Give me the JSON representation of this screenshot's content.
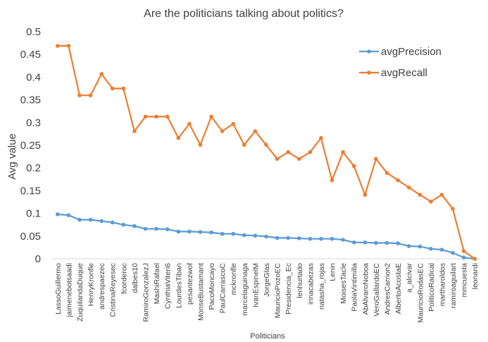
{
  "chart_data": {
    "type": "line",
    "title": "Are the politicians talking about politics?",
    "xlabel": "Politicians",
    "ylabel": "Avg value",
    "ylim": [
      0,
      0.5
    ],
    "yticks": [
      "0",
      "0.05",
      "0.1",
      "0.15",
      "0.2",
      "0.25",
      "0.3",
      "0.35",
      "0.4",
      "0.45",
      "0.5"
    ],
    "grid": false,
    "legend_position": "top-right",
    "categories": [
      "LassoGuillermo",
      "jaimenebotsaadi",
      "ZuquilandaDuque",
      "HenryKronfle",
      "andrespaezec",
      "CristinaReyesec",
      "fcorderoc",
      "dalbes10",
      "RamiroGonzalezJ",
      "MashiRafael",
      "CynthiaViteri6",
      "LourdesTiban",
      "pesantezwof",
      "MonseBustamant",
      "PacoMoncayo",
      "PaulCarrascoC",
      "mckronfle",
      "marcelaguinaga",
      "IvanEspinelM",
      "JorgeGlas",
      "MauricioPozoEC",
      "Presidencia_Ec",
      "lenhurtado",
      "irinacabezas",
      "natasha_rojas",
      "Lenin",
      "MoisesTacle",
      "PaolaVintimilla",
      "AbAlvaroNoboa",
      "VeroGallardoEC",
      "AndresCarrion2",
      "AlbertoAcostaE",
      "a_alcivar",
      "MauricioRodasEC",
      "PoliticoRadical",
      "martharoldos",
      "ramiroaguilart",
      "mmcuesta",
      "leonardi"
    ],
    "series": [
      {
        "name": "avgPrecision",
        "color": "#5b9bd5",
        "values": [
          0.098,
          0.096,
          0.086,
          0.086,
          0.083,
          0.08,
          0.075,
          0.072,
          0.066,
          0.066,
          0.065,
          0.06,
          0.06,
          0.059,
          0.058,
          0.055,
          0.055,
          0.052,
          0.051,
          0.049,
          0.046,
          0.046,
          0.045,
          0.044,
          0.044,
          0.044,
          0.042,
          0.036,
          0.036,
          0.035,
          0.035,
          0.034,
          0.028,
          0.027,
          0.022,
          0.02,
          0.013,
          0.003,
          0.0
        ]
      },
      {
        "name": "avgRecall",
        "color": "#ed7d31",
        "values": [
          0.469,
          0.469,
          0.36,
          0.36,
          0.407,
          0.375,
          0.375,
          0.281,
          0.313,
          0.313,
          0.313,
          0.266,
          0.297,
          0.251,
          0.313,
          0.281,
          0.297,
          0.251,
          0.281,
          0.251,
          0.22,
          0.235,
          0.22,
          0.235,
          0.266,
          0.173,
          0.235,
          0.204,
          0.141,
          0.22,
          0.189,
          0.173,
          0.157,
          0.141,
          0.126,
          0.141,
          0.11,
          0.017,
          0.0
        ]
      }
    ]
  }
}
